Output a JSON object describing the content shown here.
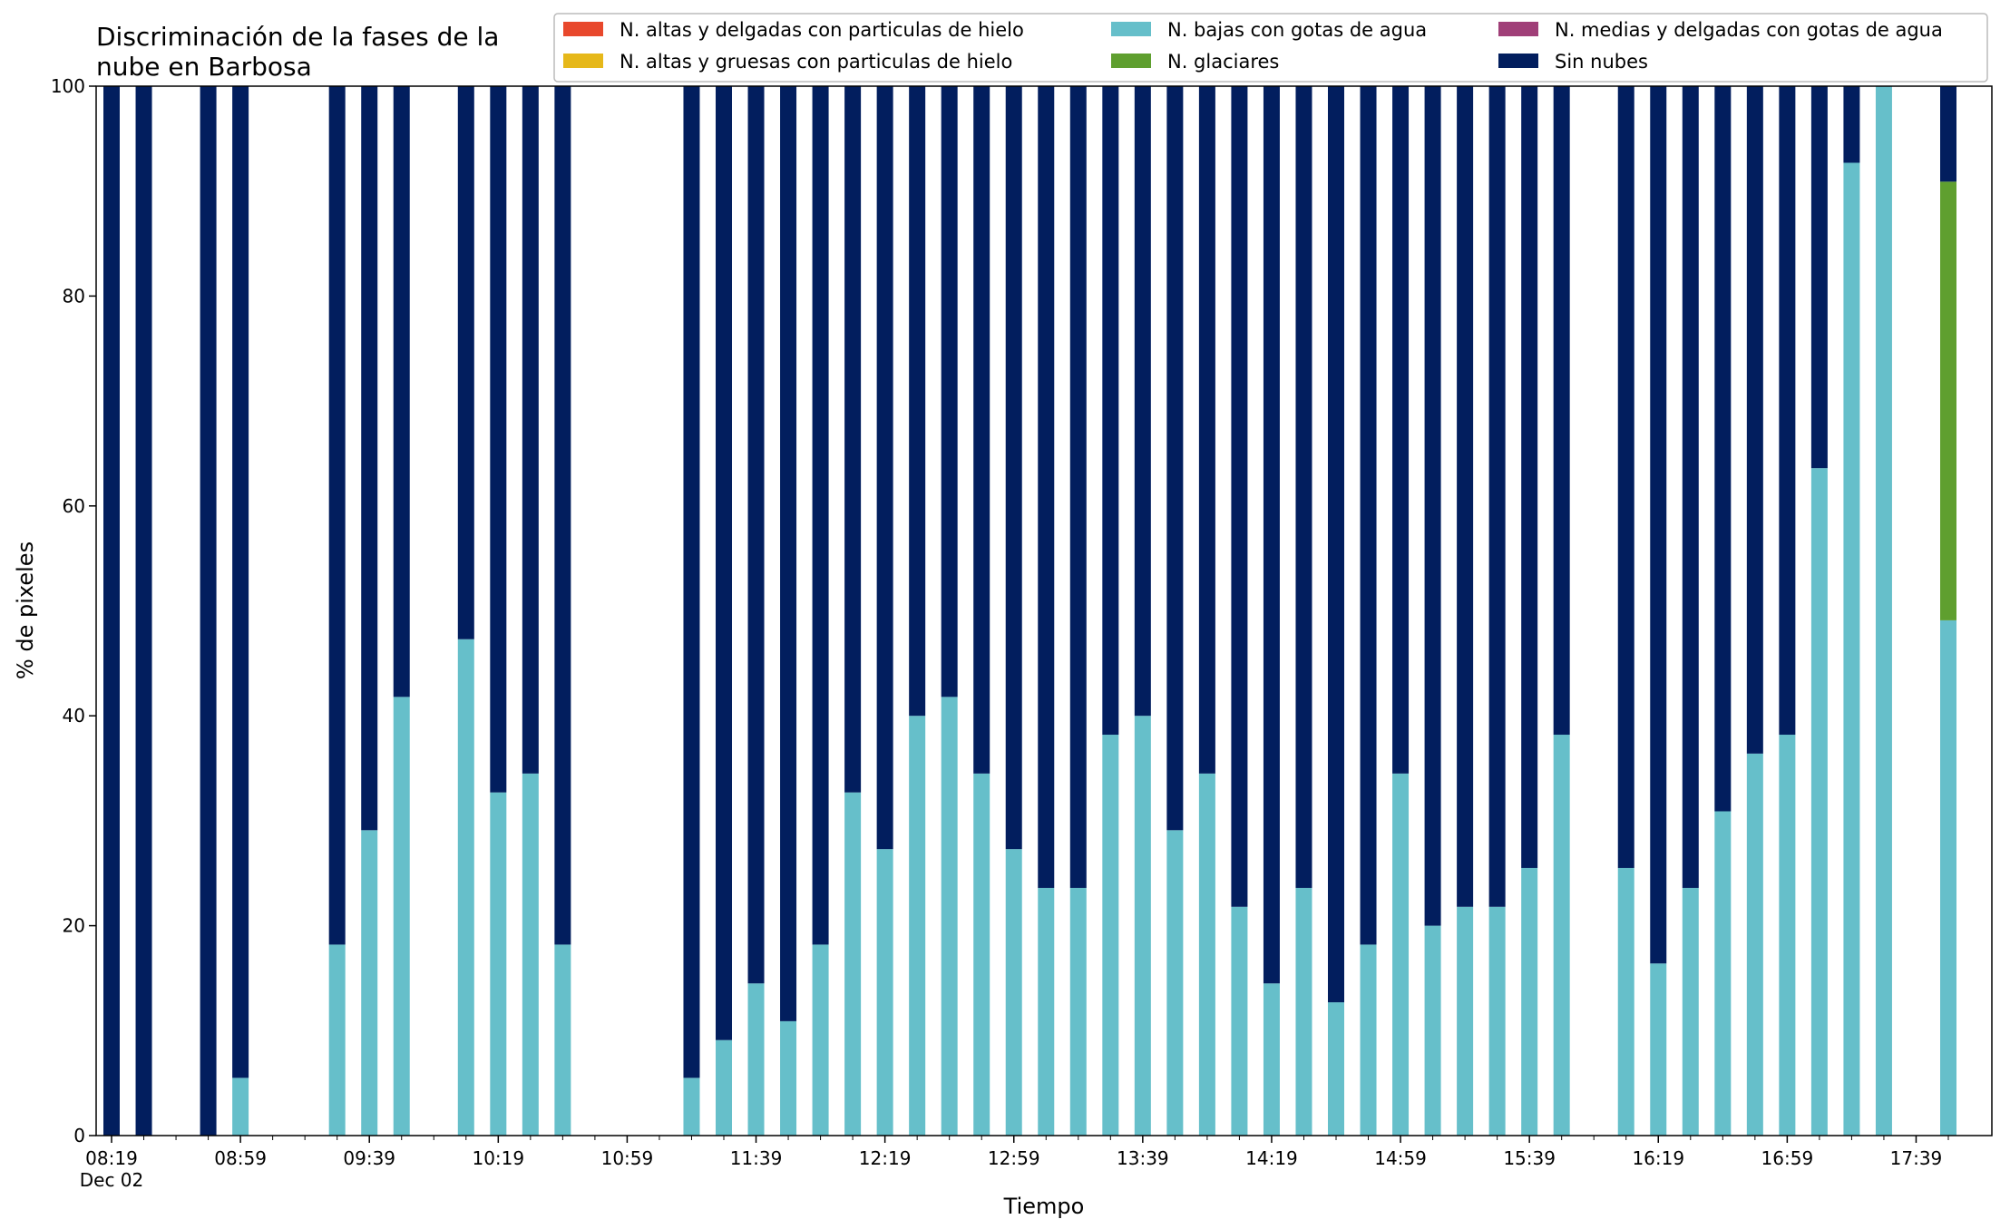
{
  "chart_data": {
    "type": "bar",
    "stacked": true,
    "title": "Discriminación de la fases de la nube en Barbosa",
    "title_lines": [
      "Discriminación de la fases de la",
      "nube en Barbosa"
    ],
    "xlabel": "Tiempo",
    "ylabel": "% de pixeles",
    "ylim": [
      0,
      100
    ],
    "y_ticks": [
      "0",
      "20",
      "40",
      "60",
      "80",
      "100"
    ],
    "grid": false,
    "legend_position": "top-right",
    "time_start": "08:19",
    "time_end": "17:49",
    "time_step_minutes": 10,
    "x_tick_labels": [
      "08:19",
      "08:59",
      "09:39",
      "10:19",
      "10:59",
      "11:39",
      "12:19",
      "12:59",
      "13:39",
      "14:19",
      "14:59",
      "15:39",
      "16:19",
      "16:59",
      "17:39"
    ],
    "x_tick_sublabel": "Dec 02",
    "series": [
      {
        "key": "altas_delgadas",
        "name": "N. altas y delgadas con particulas de hielo",
        "color": "#e8482c"
      },
      {
        "key": "altas_gruesas",
        "name": "N. altas y gruesas con particulas de hielo",
        "color": "#e6b81a"
      },
      {
        "key": "bajas_agua",
        "name": "N. bajas con gotas de agua",
        "color": "#66bfca"
      },
      {
        "key": "glaciares",
        "name": "N. glaciares",
        "color": "#5f9f2f"
      },
      {
        "key": "medias_agua",
        "name": "N. medias y delgadas con gotas de agua",
        "color": "#a03f78"
      },
      {
        "key": "sin_nubes",
        "name": "Sin nubes",
        "color": "#021e5e"
      }
    ],
    "bars": [
      {
        "time": "08:19",
        "bajas_agua": 0,
        "glaciares": 0,
        "sin_nubes": 100
      },
      {
        "time": "08:29",
        "bajas_agua": 0,
        "glaciares": 0,
        "sin_nubes": 100
      },
      {
        "time": "08:49",
        "bajas_agua": 0,
        "glaciares": 0,
        "sin_nubes": 100
      },
      {
        "time": "08:59",
        "bajas_agua": 5.5,
        "glaciares": 0,
        "sin_nubes": 94.5
      },
      {
        "time": "09:29",
        "bajas_agua": 18.2,
        "glaciares": 0,
        "sin_nubes": 81.8
      },
      {
        "time": "09:39",
        "bajas_agua": 29.1,
        "glaciares": 0,
        "sin_nubes": 70.9
      },
      {
        "time": "09:49",
        "bajas_agua": 41.8,
        "glaciares": 0,
        "sin_nubes": 58.2
      },
      {
        "time": "10:09",
        "bajas_agua": 47.3,
        "glaciares": 0,
        "sin_nubes": 52.7
      },
      {
        "time": "10:19",
        "bajas_agua": 32.7,
        "glaciares": 0,
        "sin_nubes": 67.3
      },
      {
        "time": "10:29",
        "bajas_agua": 34.5,
        "glaciares": 0,
        "sin_nubes": 65.5
      },
      {
        "time": "10:39",
        "bajas_agua": 18.2,
        "glaciares": 0,
        "sin_nubes": 81.8
      },
      {
        "time": "11:19",
        "bajas_agua": 5.5,
        "glaciares": 0,
        "sin_nubes": 94.5
      },
      {
        "time": "11:29",
        "bajas_agua": 9.1,
        "glaciares": 0,
        "sin_nubes": 90.9
      },
      {
        "time": "11:39",
        "bajas_agua": 14.5,
        "glaciares": 0,
        "sin_nubes": 85.5
      },
      {
        "time": "11:49",
        "bajas_agua": 10.9,
        "glaciares": 0,
        "sin_nubes": 89.1
      },
      {
        "time": "11:59",
        "bajas_agua": 18.2,
        "glaciares": 0,
        "sin_nubes": 81.8
      },
      {
        "time": "12:09",
        "bajas_agua": 32.7,
        "glaciares": 0,
        "sin_nubes": 67.3
      },
      {
        "time": "12:19",
        "bajas_agua": 27.3,
        "glaciares": 0,
        "sin_nubes": 72.7
      },
      {
        "time": "12:29",
        "bajas_agua": 40.0,
        "glaciares": 0,
        "sin_nubes": 60.0
      },
      {
        "time": "12:39",
        "bajas_agua": 41.8,
        "glaciares": 0,
        "sin_nubes": 58.2
      },
      {
        "time": "12:49",
        "bajas_agua": 34.5,
        "glaciares": 0,
        "sin_nubes": 65.5
      },
      {
        "time": "12:59",
        "bajas_agua": 27.3,
        "glaciares": 0,
        "sin_nubes": 72.7
      },
      {
        "time": "13:09",
        "bajas_agua": 23.6,
        "glaciares": 0,
        "sin_nubes": 76.4
      },
      {
        "time": "13:19",
        "bajas_agua": 23.6,
        "glaciares": 0,
        "sin_nubes": 76.4
      },
      {
        "time": "13:29",
        "bajas_agua": 38.2,
        "glaciares": 0,
        "sin_nubes": 61.8
      },
      {
        "time": "13:39",
        "bajas_agua": 40.0,
        "glaciares": 0,
        "sin_nubes": 60.0
      },
      {
        "time": "13:49",
        "bajas_agua": 29.1,
        "glaciares": 0,
        "sin_nubes": 70.9
      },
      {
        "time": "13:59",
        "bajas_agua": 34.5,
        "glaciares": 0,
        "sin_nubes": 65.5
      },
      {
        "time": "14:09",
        "bajas_agua": 21.8,
        "glaciares": 0,
        "sin_nubes": 78.2
      },
      {
        "time": "14:19",
        "bajas_agua": 14.5,
        "glaciares": 0,
        "sin_nubes": 85.5
      },
      {
        "time": "14:29",
        "bajas_agua": 23.6,
        "glaciares": 0,
        "sin_nubes": 76.4
      },
      {
        "time": "14:39",
        "bajas_agua": 12.7,
        "glaciares": 0,
        "sin_nubes": 87.3
      },
      {
        "time": "14:49",
        "bajas_agua": 18.2,
        "glaciares": 0,
        "sin_nubes": 81.8
      },
      {
        "time": "14:59",
        "bajas_agua": 34.5,
        "glaciares": 0,
        "sin_nubes": 65.5
      },
      {
        "time": "15:09",
        "bajas_agua": 20.0,
        "glaciares": 0,
        "sin_nubes": 80.0
      },
      {
        "time": "15:19",
        "bajas_agua": 21.8,
        "glaciares": 0,
        "sin_nubes": 78.2
      },
      {
        "time": "15:29",
        "bajas_agua": 21.8,
        "glaciares": 0,
        "sin_nubes": 78.2
      },
      {
        "time": "15:39",
        "bajas_agua": 25.5,
        "glaciares": 0,
        "sin_nubes": 74.5
      },
      {
        "time": "15:49",
        "bajas_agua": 38.2,
        "glaciares": 0,
        "sin_nubes": 61.8
      },
      {
        "time": "16:09",
        "bajas_agua": 25.5,
        "glaciares": 0,
        "sin_nubes": 74.5
      },
      {
        "time": "16:19",
        "bajas_agua": 16.4,
        "glaciares": 0,
        "sin_nubes": 83.6
      },
      {
        "time": "16:29",
        "bajas_agua": 23.6,
        "glaciares": 0,
        "sin_nubes": 76.4
      },
      {
        "time": "16:39",
        "bajas_agua": 30.9,
        "glaciares": 0,
        "sin_nubes": 69.1
      },
      {
        "time": "16:49",
        "bajas_agua": 36.4,
        "glaciares": 0,
        "sin_nubes": 63.6
      },
      {
        "time": "16:59",
        "bajas_agua": 38.2,
        "glaciares": 0,
        "sin_nubes": 61.8
      },
      {
        "time": "17:09",
        "bajas_agua": 63.6,
        "glaciares": 0,
        "sin_nubes": 36.4
      },
      {
        "time": "17:19",
        "bajas_agua": 92.7,
        "glaciares": 0,
        "sin_nubes": 7.3
      },
      {
        "time": "17:29",
        "bajas_agua": 100,
        "glaciares": 0,
        "sin_nubes": 0
      },
      {
        "time": "17:49",
        "bajas_agua": 49.1,
        "glaciares": 41.8,
        "sin_nubes": 9.1
      }
    ]
  }
}
